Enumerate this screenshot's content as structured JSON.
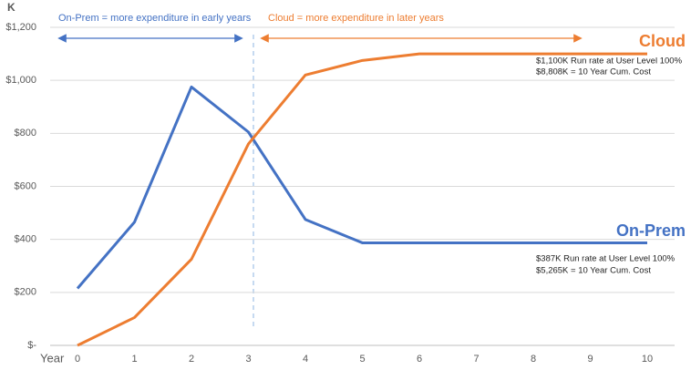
{
  "chart_data": {
    "type": "line",
    "y_unit": "K",
    "x_label": "Year",
    "x": [
      0,
      1,
      2,
      3,
      4,
      5,
      6,
      7,
      8,
      9,
      10
    ],
    "xlim": [
      0,
      10
    ],
    "ylim": [
      0,
      1200
    ],
    "yticks": [
      {
        "value": 0,
        "label": "$-"
      },
      {
        "value": 200,
        "label": "$200"
      },
      {
        "value": 400,
        "label": "$400"
      },
      {
        "value": 600,
        "label": "$600"
      },
      {
        "value": 800,
        "label": "$800"
      },
      {
        "value": 1000,
        "label": "$1,000"
      },
      {
        "value": 1200,
        "label": "$1,200"
      }
    ],
    "grid": true,
    "series": [
      {
        "name": "On-Prem",
        "color": "#4472c4",
        "values": [
          215,
          465,
          975,
          805,
          475,
          387,
          387,
          387,
          387,
          387,
          387
        ]
      },
      {
        "name": "Cloud",
        "color": "#ed7d31",
        "values": [
          0,
          105,
          325,
          760,
          1020,
          1075,
          1100,
          1100,
          1100,
          1100,
          1100
        ]
      }
    ],
    "annotations": [
      "On-Prem = more expenditure in early years",
      "Cloud = more expenditure in later years",
      "$1,100K Run rate at User Level 100%",
      "$8,808K = 10 Year Cum. Cost",
      "$387K Run rate at User Level 100%",
      "$5,265K = 10 Year Cum. Cost"
    ]
  }
}
